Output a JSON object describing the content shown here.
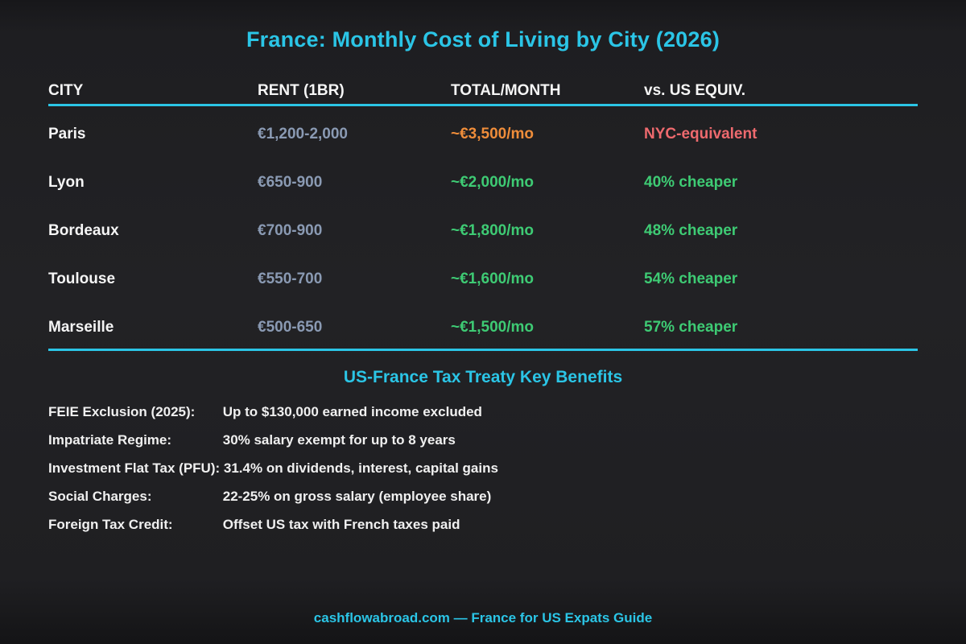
{
  "page": {
    "title": "France: Monthly Cost of Living by City (2026)"
  },
  "table": {
    "columns": [
      "CITY",
      "RENT (1BR)",
      "TOTAL/MONTH",
      "vs. US EQUIV."
    ],
    "rows": [
      {
        "city": "Paris",
        "rent": "€1,200-2,000",
        "total": "~€3,500/mo",
        "equiv": "NYC-equivalent"
      },
      {
        "city": "Lyon",
        "rent": "€650-900",
        "total": "~€2,000/mo",
        "equiv": "40% cheaper"
      },
      {
        "city": "Bordeaux",
        "rent": "€700-900",
        "total": "~€1,800/mo",
        "equiv": "48% cheaper"
      },
      {
        "city": "Toulouse",
        "rent": "€550-700",
        "total": "~€1,600/mo",
        "equiv": "54% cheaper"
      },
      {
        "city": "Marseille",
        "rent": "€500-650",
        "total": "~€1,500/mo",
        "equiv": "57% cheaper"
      }
    ]
  },
  "tax_section": {
    "title": "US-France Tax Treaty Key Benefits",
    "items": [
      {
        "label": "FEIE Exclusion (2025):",
        "value": "Up to $130,000 earned income excluded"
      },
      {
        "label": "Impatriate Regime:",
        "value": "30% salary exempt for up to 8 years"
      },
      {
        "label": "Investment Flat Tax (PFU):",
        "value": "31.4% on dividends, interest, capital gains"
      },
      {
        "label": "Social Charges:",
        "value": "22-25% on gross salary (employee share)"
      },
      {
        "label": "Foreign Tax Credit:",
        "value": "Offset US tax with French taxes paid"
      }
    ]
  },
  "footer": {
    "text": "cashflowabroad.com — France for US Expats Guide"
  },
  "colors": {
    "accent_cyan": "#2bc5e6",
    "orange": "#ef8d3a",
    "green": "#3ecb74",
    "red_salmon": "#ee6a6e",
    "rent_gray": "#8a9ab3",
    "text_white": "#f2f2f2",
    "background": "#1e1e21"
  }
}
